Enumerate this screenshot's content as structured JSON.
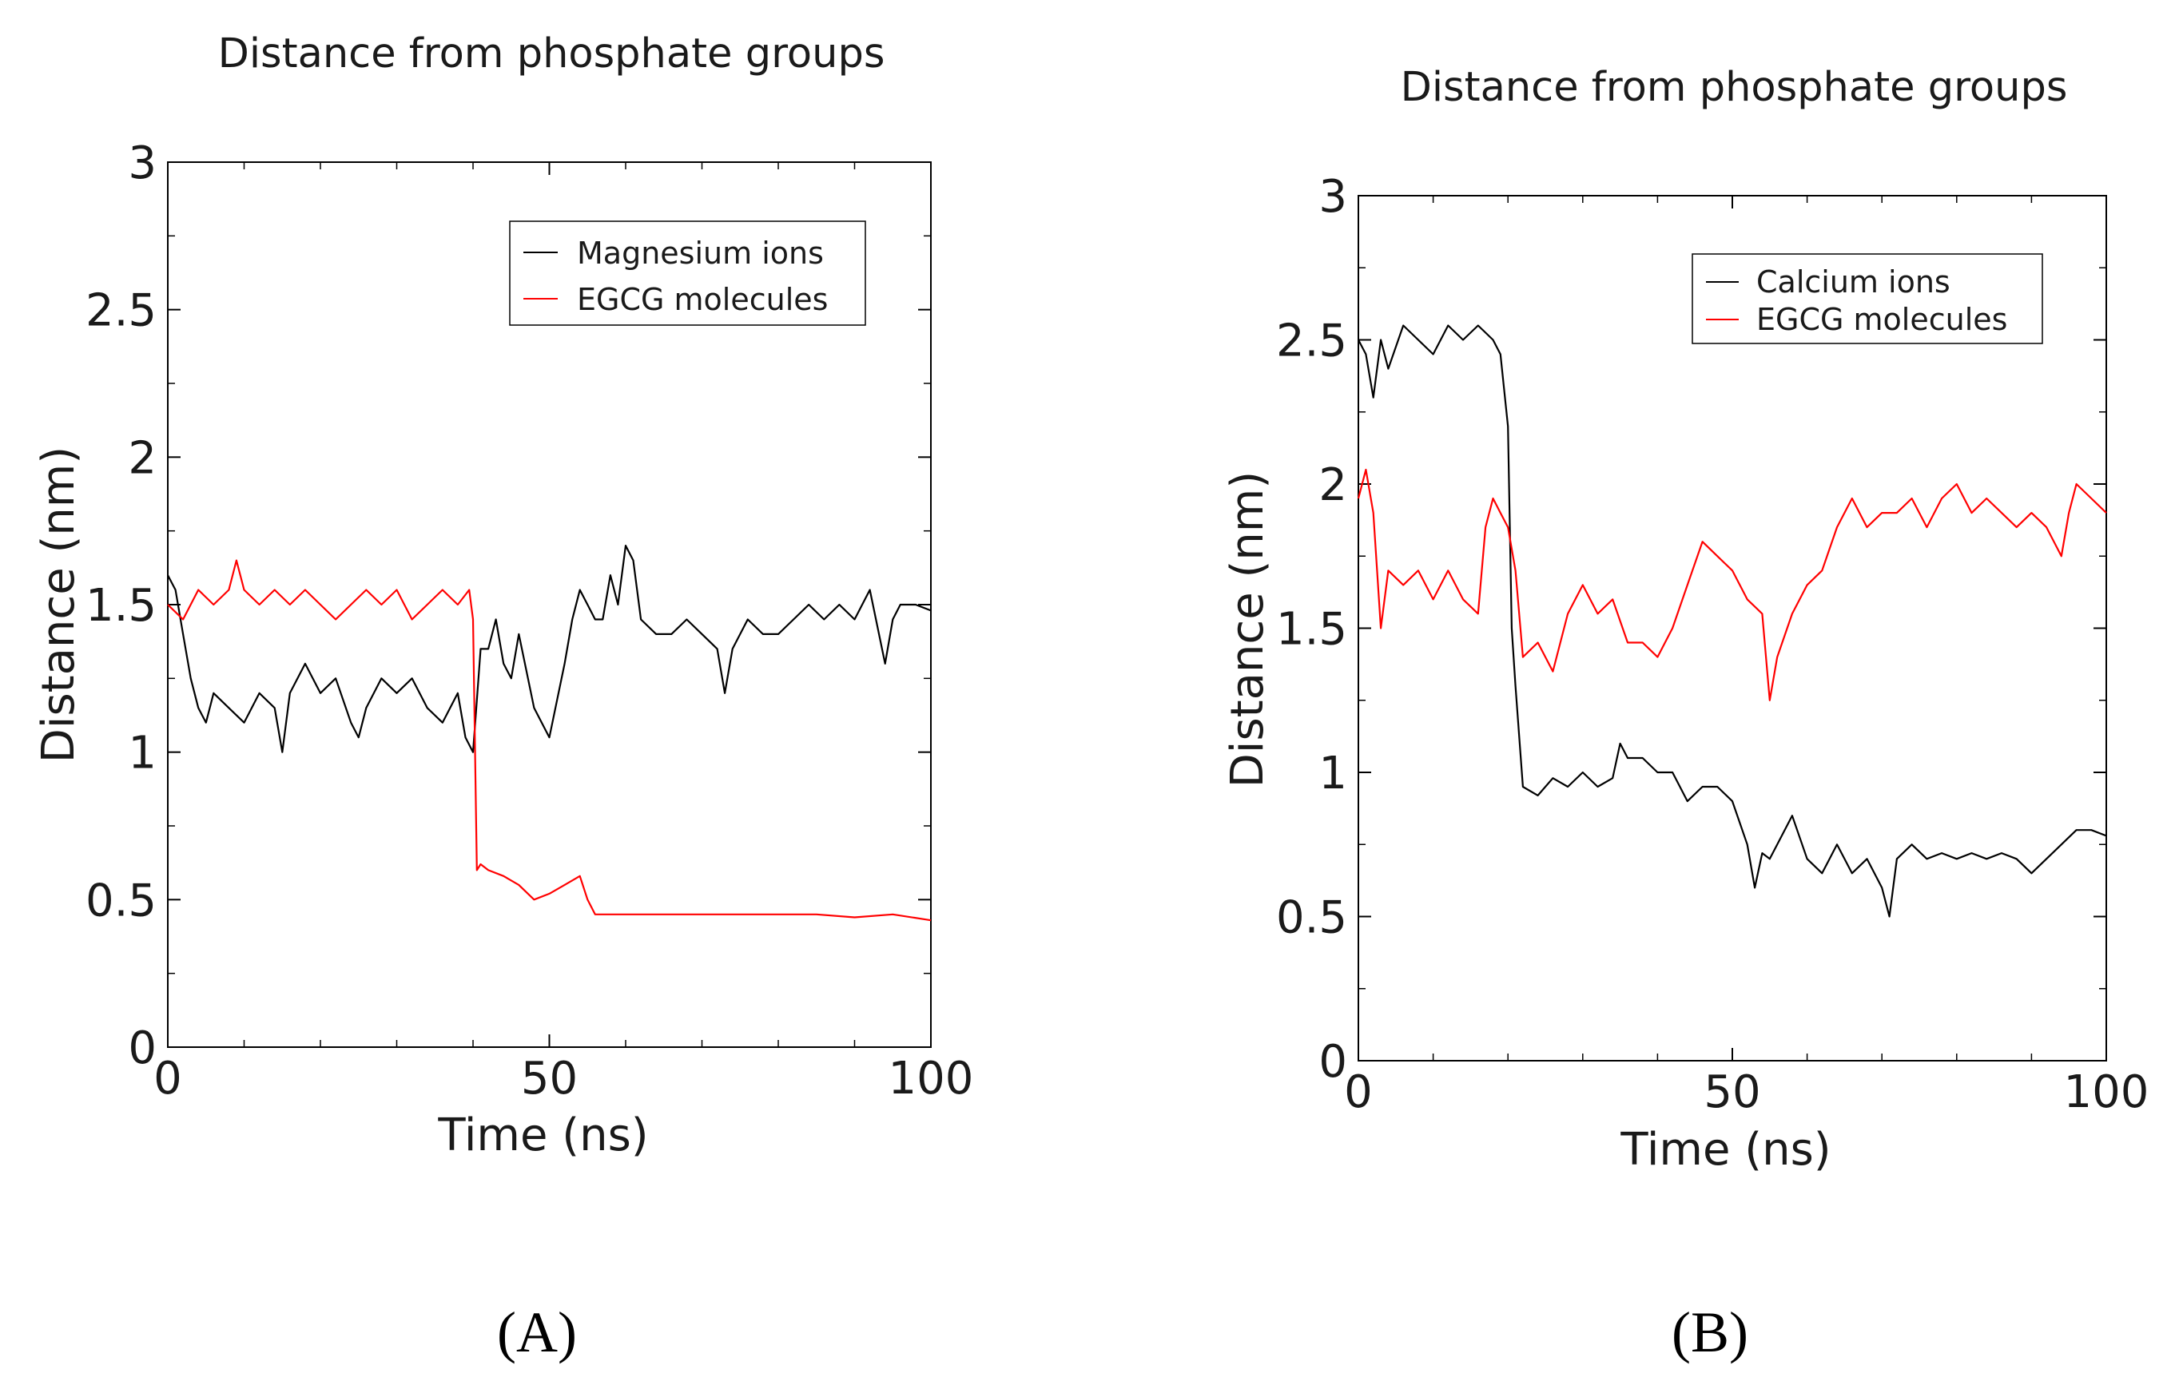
{
  "figure": {
    "panel_labels": [
      "(A)",
      "(B)"
    ]
  },
  "colors": {
    "series_black": "#000000",
    "series_red": "#ff0000"
  },
  "chart_data": [
    {
      "type": "line",
      "title": "Distance from phosphate groups",
      "xlabel": "Time (ns)",
      "ylabel": "Distance (nm)",
      "xlim": [
        0,
        100
      ],
      "ylim": [
        0,
        3
      ],
      "xticks": [
        "0",
        "50",
        "100"
      ],
      "yticks": [
        "0",
        "0.5",
        "1",
        "1.5",
        "2",
        "2.5",
        "3"
      ],
      "legend_position": "top-right",
      "series": [
        {
          "name": "Magnesium ions",
          "color": "#000000",
          "x": [
            0,
            1,
            2,
            3,
            4,
            5,
            6,
            8,
            10,
            12,
            14,
            15,
            16,
            18,
            20,
            22,
            24,
            25,
            26,
            28,
            30,
            32,
            34,
            36,
            38,
            39,
            40,
            41,
            42,
            43,
            44,
            45,
            46,
            48,
            50,
            52,
            53,
            54,
            55,
            56,
            57,
            58,
            59,
            60,
            61,
            62,
            64,
            66,
            68,
            70,
            72,
            73,
            74,
            76,
            78,
            80,
            82,
            84,
            86,
            88,
            90,
            92,
            94,
            95,
            96,
            98,
            100
          ],
          "y": [
            1.6,
            1.55,
            1.4,
            1.25,
            1.15,
            1.1,
            1.2,
            1.15,
            1.1,
            1.2,
            1.15,
            1.0,
            1.2,
            1.3,
            1.2,
            1.25,
            1.1,
            1.05,
            1.15,
            1.25,
            1.2,
            1.25,
            1.15,
            1.1,
            1.2,
            1.05,
            1.0,
            1.35,
            1.35,
            1.45,
            1.3,
            1.25,
            1.4,
            1.15,
            1.05,
            1.3,
            1.45,
            1.55,
            1.5,
            1.45,
            1.45,
            1.6,
            1.5,
            1.7,
            1.65,
            1.45,
            1.4,
            1.4,
            1.45,
            1.4,
            1.35,
            1.2,
            1.35,
            1.45,
            1.4,
            1.4,
            1.45,
            1.5,
            1.45,
            1.5,
            1.45,
            1.55,
            1.3,
            1.45,
            1.5,
            1.5,
            1.48
          ]
        },
        {
          "name": "EGCG molecules",
          "color": "#ff0000",
          "x": [
            0,
            2,
            4,
            6,
            8,
            9,
            10,
            12,
            14,
            16,
            18,
            20,
            22,
            24,
            26,
            28,
            30,
            32,
            34,
            36,
            38,
            39.5,
            40,
            40.5,
            41,
            42,
            44,
            46,
            48,
            50,
            52,
            54,
            55,
            56,
            58,
            60,
            65,
            70,
            75,
            80,
            85,
            90,
            95,
            100
          ],
          "y": [
            1.5,
            1.45,
            1.55,
            1.5,
            1.55,
            1.65,
            1.55,
            1.5,
            1.55,
            1.5,
            1.55,
            1.5,
            1.45,
            1.5,
            1.55,
            1.5,
            1.55,
            1.45,
            1.5,
            1.55,
            1.5,
            1.55,
            1.45,
            0.6,
            0.62,
            0.6,
            0.58,
            0.55,
            0.5,
            0.52,
            0.55,
            0.58,
            0.5,
            0.45,
            0.45,
            0.45,
            0.45,
            0.45,
            0.45,
            0.45,
            0.45,
            0.44,
            0.45,
            0.43
          ]
        }
      ]
    },
    {
      "type": "line",
      "title": "Distance from phosphate groups",
      "xlabel": "Time (ns)",
      "ylabel": "Distance (nm)",
      "xlim": [
        0,
        100
      ],
      "ylim": [
        0,
        3
      ],
      "xticks": [
        "0",
        "50",
        "100"
      ],
      "yticks": [
        "0",
        "0.5",
        "1",
        "1.5",
        "2",
        "2.5",
        "3"
      ],
      "legend_position": "top-right",
      "series": [
        {
          "name": "Calcium ions",
          "color": "#000000",
          "x": [
            0,
            1,
            2,
            3,
            4,
            6,
            8,
            10,
            12,
            14,
            16,
            18,
            19,
            20,
            20.5,
            21,
            22,
            24,
            26,
            28,
            30,
            32,
            34,
            35,
            36,
            38,
            40,
            42,
            44,
            46,
            48,
            50,
            52,
            53,
            54,
            55,
            56,
            58,
            60,
            62,
            64,
            66,
            68,
            70,
            71,
            72,
            74,
            76,
            78,
            80,
            82,
            84,
            86,
            88,
            90,
            92,
            94,
            96,
            98,
            100
          ],
          "y": [
            2.5,
            2.45,
            2.3,
            2.5,
            2.4,
            2.55,
            2.5,
            2.45,
            2.55,
            2.5,
            2.55,
            2.5,
            2.45,
            2.2,
            1.5,
            1.3,
            0.95,
            0.92,
            0.98,
            0.95,
            1.0,
            0.95,
            0.98,
            1.1,
            1.05,
            1.05,
            1.0,
            1.0,
            0.9,
            0.95,
            0.95,
            0.9,
            0.75,
            0.6,
            0.72,
            0.7,
            0.75,
            0.85,
            0.7,
            0.65,
            0.75,
            0.65,
            0.7,
            0.6,
            0.5,
            0.7,
            0.75,
            0.7,
            0.72,
            0.7,
            0.72,
            0.7,
            0.72,
            0.7,
            0.65,
            0.7,
            0.75,
            0.8,
            0.8,
            0.78
          ]
        },
        {
          "name": "EGCG molecules",
          "color": "#ff0000",
          "x": [
            0,
            1,
            2,
            3,
            4,
            6,
            8,
            10,
            12,
            14,
            16,
            17,
            18,
            19,
            20,
            21,
            22,
            24,
            26,
            28,
            30,
            32,
            34,
            36,
            38,
            40,
            42,
            44,
            46,
            48,
            50,
            52,
            54,
            55,
            56,
            58,
            60,
            62,
            64,
            66,
            68,
            70,
            72,
            74,
            76,
            78,
            80,
            82,
            84,
            86,
            88,
            90,
            92,
            94,
            95,
            96,
            98,
            100
          ],
          "y": [
            1.95,
            2.05,
            1.9,
            1.5,
            1.7,
            1.65,
            1.7,
            1.6,
            1.7,
            1.6,
            1.55,
            1.85,
            1.95,
            1.9,
            1.85,
            1.7,
            1.4,
            1.45,
            1.35,
            1.55,
            1.65,
            1.55,
            1.6,
            1.45,
            1.45,
            1.4,
            1.5,
            1.65,
            1.8,
            1.75,
            1.7,
            1.6,
            1.55,
            1.25,
            1.4,
            1.55,
            1.65,
            1.7,
            1.85,
            1.95,
            1.85,
            1.9,
            1.9,
            1.95,
            1.85,
            1.95,
            2.0,
            1.9,
            1.95,
            1.9,
            1.85,
            1.9,
            1.85,
            1.75,
            1.9,
            2.0,
            1.95,
            1.9
          ]
        }
      ]
    }
  ]
}
